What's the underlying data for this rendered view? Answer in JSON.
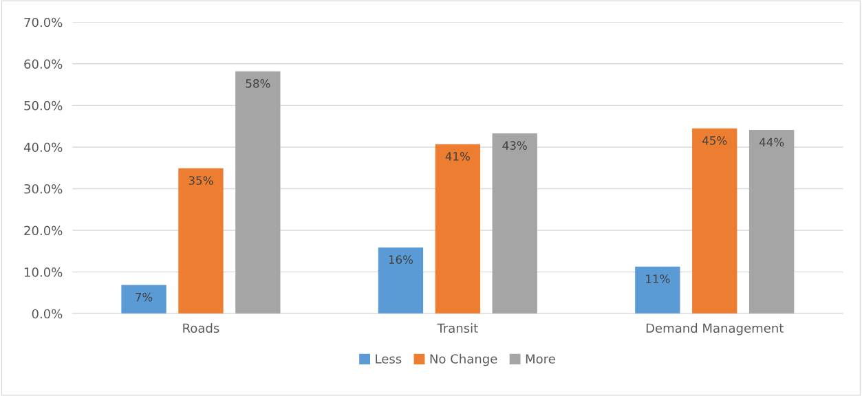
{
  "chart_data": {
    "type": "bar",
    "categories": [
      "Roads",
      "Transit",
      "Demand Management"
    ],
    "series": [
      {
        "name": "Less",
        "color": "#5b9bd5",
        "values": [
          6.9,
          15.9,
          11.3
        ],
        "value_labels": [
          "7%",
          "16%",
          "11%"
        ]
      },
      {
        "name": "No Change",
        "color": "#ed7d31",
        "values": [
          34.9,
          40.7,
          44.5
        ],
        "value_labels": [
          "35%",
          "41%",
          "45%"
        ]
      },
      {
        "name": "More",
        "color": "#a5a5a5",
        "values": [
          58.2,
          43.3,
          44.1
        ],
        "value_labels": [
          "58%",
          "43%",
          "44%"
        ]
      }
    ],
    "ylim": [
      0,
      70
    ],
    "yticks": [
      {
        "value": 0,
        "label": "0.0%"
      },
      {
        "value": 10,
        "label": "10.0%"
      },
      {
        "value": 20,
        "label": "20.0%"
      },
      {
        "value": 30,
        "label": "30.0%"
      },
      {
        "value": 40,
        "label": "40.0%"
      },
      {
        "value": 50,
        "label": "50.0%"
      },
      {
        "value": 60,
        "label": "60.0%"
      },
      {
        "value": 70,
        "label": "70.0%"
      }
    ],
    "grid": "y",
    "legend": "bottom"
  }
}
